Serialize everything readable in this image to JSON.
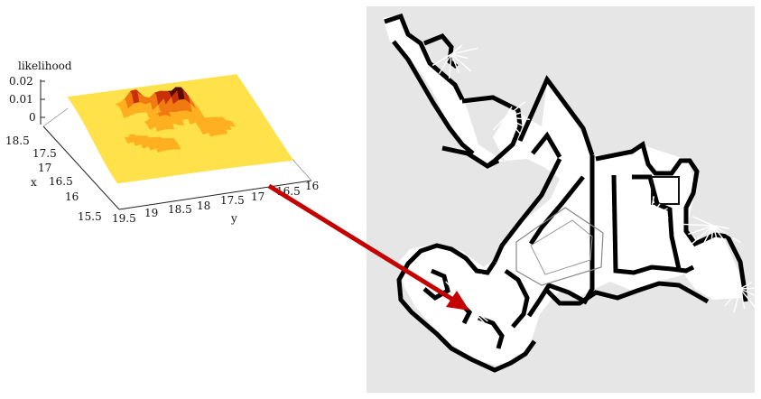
{
  "plot": {
    "z_label": "likelihood",
    "z_ticks": [
      "0.02",
      "0.01",
      "0"
    ],
    "x_label": "x",
    "x_ticks": [
      "18.5",
      "17.5",
      "17",
      "16.5",
      "16",
      "15.5"
    ],
    "y_label": "y",
    "y_ticks": [
      "19.5",
      "19",
      "18.5",
      "18",
      "17.5",
      "17",
      "16.5",
      "16"
    ],
    "colormap": [
      "#ffe14a",
      "#ffb020",
      "#f07a10",
      "#c8300c",
      "#5a0a06",
      "#200000"
    ]
  },
  "arrow": {
    "color": "#c40000"
  },
  "map": {
    "background": "#e6e6e6",
    "wall_color": "#000000",
    "scan_color": "#ffffff"
  }
}
